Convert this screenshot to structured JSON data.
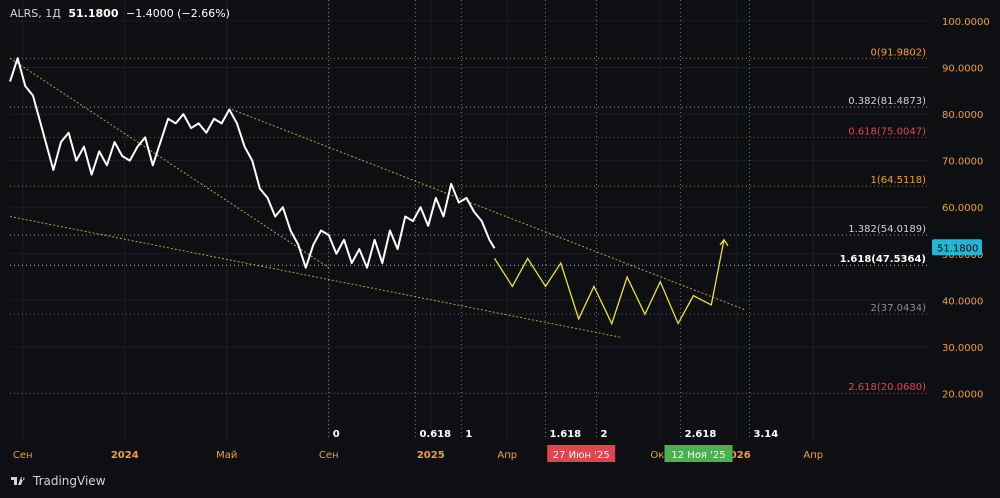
{
  "header": {
    "symbol": "ALRS, 1Д",
    "price": "51.1800",
    "change": "−1.4000 (−2.66%)"
  },
  "footer": {
    "brand": "TradingView"
  },
  "colors": {
    "background": "#0e0f13",
    "price_line": "#ffffff",
    "forecast": "#f0e130",
    "trend": "#c8c04a",
    "fib_orange": "#f7a11a",
    "fib_red": "#e0444e",
    "fib_white": "#cfd2da",
    "fib_gray": "#8b8e96",
    "last_price_badge": "#22b6d4",
    "marker_red": "#e0444e",
    "marker_green": "#4caf50"
  },
  "chart_data": {
    "type": "line",
    "title": "",
    "xlabel": "",
    "ylabel": "",
    "ylim": [
      5,
      105
    ],
    "y_axis_ticks": [
      "100.0000",
      "90.0000",
      "80.0000",
      "70.0000",
      "60.0000",
      "50.0000",
      "40.0000",
      "30.0000",
      "20.0000"
    ],
    "x_axis_ticks": [
      {
        "label": "Сен",
        "t": 0.5
      },
      {
        "label": "2024",
        "t": 4.5
      },
      {
        "label": "Май",
        "t": 8.5
      },
      {
        "label": "Сен",
        "t": 12.5
      },
      {
        "label": "2025",
        "t": 16.5
      },
      {
        "label": "Апр",
        "t": 19.5
      },
      {
        "label": "Окт",
        "t": 25.5
      },
      {
        "label": "2026",
        "t": 28.5
      },
      {
        "label": "Апр",
        "t": 31.5
      }
    ],
    "date_markers": [
      {
        "label": "27 Июн '25",
        "t": 22.4,
        "color": "#e0444e"
      },
      {
        "label": "12 Ноя '25",
        "t": 27.0,
        "color": "#4caf50"
      }
    ],
    "fib_levels": [
      {
        "ratio": "0",
        "value": "91.9802",
        "y": 91.98,
        "color": "#f7a11a"
      },
      {
        "ratio": "0.382",
        "value": "81.4873",
        "y": 81.49,
        "color": "#cfd2da"
      },
      {
        "ratio": "0.618",
        "value": "75.0047",
        "y": 75.0,
        "color": "#e0444e"
      },
      {
        "ratio": "1",
        "value": "64.5118",
        "y": 64.51,
        "color": "#f7a11a"
      },
      {
        "ratio": "1.382",
        "value": "54.0189",
        "y": 54.02,
        "color": "#cfd2da"
      },
      {
        "ratio": "1.618",
        "value": "47.5364",
        "y": 47.54,
        "color": "#ffffff"
      },
      {
        "ratio": "2",
        "value": "37.0434",
        "y": 37.04,
        "color": "#8b8e96"
      },
      {
        "ratio": "2.618",
        "value": "20.0680",
        "y": 20.07,
        "color": "#e0444e"
      }
    ],
    "time_fib": [
      {
        "label": "0",
        "t": 12.5
      },
      {
        "label": "0.618",
        "t": 15.9
      },
      {
        "label": "1",
        "t": 17.7
      },
      {
        "label": "1.618",
        "t": 21.0
      },
      {
        "label": "2",
        "t": 23.0
      },
      {
        "label": "2.618",
        "t": 26.3
      },
      {
        "label": "3.14",
        "t": 29.0
      }
    ],
    "last_price": {
      "label": "51.1800",
      "y": 51.18
    },
    "series": [
      {
        "x": [
          0,
          0.3,
          0.6,
          0.9,
          1.2,
          1.5,
          1.7,
          2.0,
          2.3,
          2.6,
          2.9,
          3.2,
          3.5,
          3.8,
          4.1,
          4.4,
          4.7,
          5.0,
          5.3,
          5.6,
          5.9,
          6.2,
          6.5,
          6.8,
          7.1,
          7.4,
          7.7,
          8.0,
          8.3,
          8.6,
          8.9,
          9.2,
          9.5,
          9.8,
          10.1,
          10.4,
          10.7,
          11.0,
          11.3,
          11.6,
          11.9,
          12.2,
          12.5,
          12.8,
          13.1,
          13.4,
          13.7,
          14.0,
          14.3,
          14.6,
          14.9,
          15.2,
          15.5,
          15.8,
          16.1,
          16.4,
          16.7,
          17.0,
          17.3,
          17.6,
          17.9,
          18.2,
          18.5,
          18.8,
          19.0
        ],
        "values": [
          87,
          92,
          86,
          84,
          78,
          72,
          68,
          74,
          76,
          70,
          73,
          67,
          72,
          69,
          74,
          71,
          70,
          73,
          75,
          69,
          74,
          79,
          78,
          80,
          77,
          78,
          76,
          79,
          78,
          81,
          78,
          73,
          70,
          64,
          62,
          58,
          60,
          55,
          52,
          47,
          52,
          55,
          54,
          50,
          53,
          48,
          51,
          47,
          53,
          48,
          55,
          51,
          58,
          57,
          60,
          56,
          62,
          58,
          65,
          61,
          62,
          59,
          57,
          53,
          51.18
        ]
      },
      {
        "x": [
          19.0,
          19.7,
          20.3,
          21.0,
          21.6,
          22.3,
          22.9,
          23.6,
          24.2,
          24.9,
          25.5,
          26.2,
          26.8,
          27.5,
          28.0
        ],
        "values": [
          49,
          43,
          49,
          43,
          48,
          36,
          43,
          35,
          45,
          37,
          44,
          35,
          41,
          39,
          53
        ]
      }
    ],
    "trendlines": [
      {
        "x": [
          0,
          12.5
        ],
        "values": [
          92,
          47
        ]
      },
      {
        "x": [
          0,
          24.0
        ],
        "values": [
          58,
          32
        ]
      },
      {
        "x": [
          8.7,
          28.8
        ],
        "values": [
          81,
          38
        ]
      }
    ]
  }
}
